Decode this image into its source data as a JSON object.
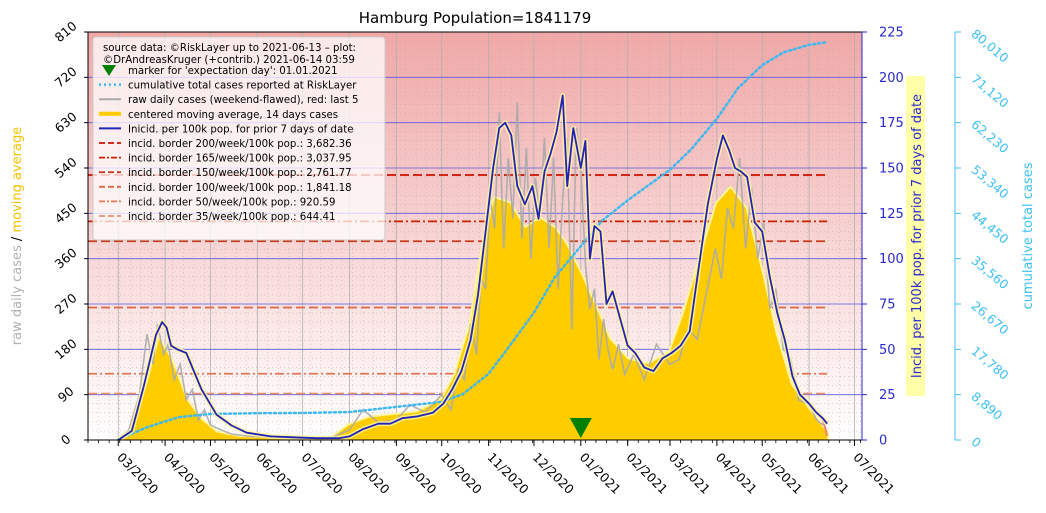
{
  "chart_data": {
    "type": "area",
    "title": "Hamburg Population=1841179",
    "xlabel": "",
    "ylabel_left": {
      "part1": "raw daily cases",
      "sep": "/",
      "part2": "moving average"
    },
    "ylabel_right1": "Incid. per 100k pop. for prior 7 days of date",
    "ylabel_right2": "cumulative total cases",
    "colors": {
      "raw": "#aaaaaa",
      "raw_last5": "#f08080",
      "moving_avg_fill": "#ffcc00",
      "moving_avg_edge": "#fff59d",
      "incidence": "#2323b8",
      "cumulative": "#3db8f0",
      "marker": "#008000",
      "right1_axis": "#2a2acd",
      "right2_axis": "#3cc0f0",
      "left_label_raw": "#b0b0b0",
      "left_label_ma": "#f2c200",
      "bg_top": "#f0a8a8",
      "bg_bottom": "#ffffff"
    },
    "ylim_left": [
      0,
      810
    ],
    "yticks_left": [
      "0",
      "90",
      "180",
      "270",
      "360",
      "450",
      "540",
      "630",
      "720",
      "810"
    ],
    "ylim_right1": [
      0,
      225
    ],
    "yticks_right1": [
      "0",
      "25",
      "50",
      "75",
      "100",
      "125",
      "150",
      "175",
      "200",
      "225"
    ],
    "ylim_right2": [
      0,
      80010
    ],
    "yticks_right2": [
      "0",
      "8,890",
      "17,780",
      "26,670",
      "35,560",
      "44,450",
      "53,340",
      "62,230",
      "71,120",
      "80,010"
    ],
    "x_months": [
      "03/2020",
      "04/2020",
      "05/2020",
      "06/2020",
      "07/2020",
      "08/2020",
      "09/2020",
      "10/2020",
      "11/2020",
      "12/2020",
      "01/2021",
      "02/2021",
      "03/2021",
      "04/2021",
      "05/2021",
      "06/2021",
      "07/2021"
    ],
    "legend": {
      "source": [
        "source data: ©RiskLayer up to 2021-06-13 – plot:",
        "©DrAndreasKruger (+contrib.) 2021-06-14 03:59"
      ],
      "items": [
        "marker for 'expectation day': 01.01.2021",
        "cumulative total cases reported at RiskLayer",
        "raw daily cases (weekend-flawed), red: last 5",
        "centered moving average, 14 days cases",
        "Inicid. per 100k pop. for prior 7 days of date",
        "incid. border 200/week/100k pop.: 3,682.36",
        "incid. border 165/week/100k pop.: 3,037.95",
        "incid. border 150/week/100k pop.: 2,761.77",
        "incid. border 100/week/100k pop.: 1,841.18",
        "incid. border   50/week/100k pop.: 920.59",
        "incid. border   35/week/100k pop.: 644.41"
      ]
    },
    "incidence_borders": [
      {
        "level": 200,
        "cases": 3682.36,
        "color": "#cc1100",
        "style": "dash"
      },
      {
        "level": 165,
        "cases": 3037.95,
        "color": "#cc2200",
        "style": "dashdot"
      },
      {
        "level": 150,
        "cases": 2761.77,
        "color": "#c83a1a",
        "style": "dash"
      },
      {
        "level": 100,
        "cases": 1841.18,
        "color": "#dd6644",
        "style": "dash"
      },
      {
        "level": 50,
        "cases": 920.59,
        "color": "#e07755",
        "style": "dashdot"
      },
      {
        "level": 35,
        "cases": 644.41,
        "color": "#e89070",
        "style": "dash"
      }
    ],
    "expectation_marker": {
      "date": "2021-01-01",
      "value": 0
    },
    "moving_average": {
      "dates": [
        "2020-03-01",
        "2020-03-10",
        "2020-03-20",
        "2020-03-28",
        "2020-04-05",
        "2020-04-15",
        "2020-04-25",
        "2020-05-05",
        "2020-05-20",
        "2020-06-10",
        "2020-07-01",
        "2020-07-20",
        "2020-08-01",
        "2020-08-15",
        "2020-09-01",
        "2020-09-15",
        "2020-10-01",
        "2020-10-10",
        "2020-10-20",
        "2020-10-28",
        "2020-11-05",
        "2020-11-15",
        "2020-11-25",
        "2020-12-05",
        "2020-12-15",
        "2020-12-22",
        "2021-01-01",
        "2021-01-10",
        "2021-01-20",
        "2021-02-01",
        "2021-02-15",
        "2021-03-01",
        "2021-03-10",
        "2021-03-20",
        "2021-04-01",
        "2021-04-10",
        "2021-04-20",
        "2021-05-01",
        "2021-05-10",
        "2021-05-20",
        "2021-06-01",
        "2021-06-10",
        "2021-06-13"
      ],
      "values": [
        0,
        20,
        110,
        200,
        160,
        80,
        40,
        15,
        6,
        4,
        3,
        4,
        30,
        45,
        50,
        55,
        80,
        130,
        230,
        380,
        480,
        470,
        420,
        440,
        420,
        390,
        330,
        270,
        200,
        160,
        150,
        175,
        250,
        350,
        470,
        500,
        460,
        330,
        210,
        110,
        60,
        25,
        15
      ]
    },
    "raw_daily": {
      "dates": [
        "2020-03-01",
        "2020-03-08",
        "2020-03-15",
        "2020-03-20",
        "2020-03-24",
        "2020-03-27",
        "2020-03-31",
        "2020-04-03",
        "2020-04-07",
        "2020-04-11",
        "2020-04-15",
        "2020-04-19",
        "2020-04-23",
        "2020-04-27",
        "2020-05-01",
        "2020-05-08",
        "2020-05-15",
        "2020-05-25",
        "2020-06-10",
        "2020-07-01",
        "2020-07-20",
        "2020-08-01",
        "2020-08-10",
        "2020-08-20",
        "2020-09-01",
        "2020-09-10",
        "2020-09-20",
        "2020-10-01",
        "2020-10-07",
        "2020-10-12",
        "2020-10-16",
        "2020-10-20",
        "2020-10-24",
        "2020-10-27",
        "2020-10-30",
        "2020-11-02",
        "2020-11-05",
        "2020-11-08",
        "2020-11-11",
        "2020-11-14",
        "2020-11-17",
        "2020-11-20",
        "2020-11-23",
        "2020-11-26",
        "2020-11-29",
        "2020-12-02",
        "2020-12-05",
        "2020-12-08",
        "2020-12-11",
        "2020-12-14",
        "2020-12-17",
        "2020-12-20",
        "2020-12-23",
        "2020-12-26",
        "2020-12-29",
        "2021-01-01",
        "2021-01-04",
        "2021-01-07",
        "2021-01-10",
        "2021-01-13",
        "2021-01-16",
        "2021-01-19",
        "2021-01-22",
        "2021-01-26",
        "2021-01-30",
        "2021-02-05",
        "2021-02-12",
        "2021-02-20",
        "2021-03-01",
        "2021-03-07",
        "2021-03-13",
        "2021-03-19",
        "2021-03-25",
        "2021-03-31",
        "2021-04-04",
        "2021-04-08",
        "2021-04-12",
        "2021-04-16",
        "2021-04-20",
        "2021-04-24",
        "2021-04-28",
        "2021-05-02",
        "2021-05-06",
        "2021-05-10",
        "2021-05-15",
        "2021-05-20",
        "2021-05-25",
        "2021-06-01",
        "2021-06-06",
        "2021-06-10"
      ],
      "values": [
        0,
        20,
        90,
        210,
        150,
        230,
        170,
        190,
        120,
        150,
        80,
        100,
        40,
        60,
        30,
        20,
        12,
        8,
        5,
        3,
        5,
        20,
        60,
        35,
        40,
        70,
        55,
        90,
        60,
        140,
        120,
        230,
        170,
        320,
        300,
        480,
        420,
        650,
        380,
        560,
        440,
        670,
        400,
        580,
        360,
        520,
        440,
        600,
        380,
        560,
        300,
        480,
        600,
        220,
        620,
        540,
        350,
        260,
        300,
        160,
        240,
        180,
        140,
        190,
        130,
        170,
        120,
        190,
        150,
        160,
        220,
        200,
        290,
        380,
        320,
        460,
        420,
        560,
        380,
        500,
        360,
        430,
        260,
        300,
        180,
        160,
        80,
        70,
        40,
        30
      ]
    },
    "raw_last5": {
      "dates": [
        "2021-06-09",
        "2021-06-10",
        "2021-06-11",
        "2021-06-12",
        "2021-06-13"
      ],
      "values": [
        45,
        38,
        30,
        20,
        8
      ]
    },
    "incidence_per100k": {
      "dates": [
        "2020-03-01",
        "2020-03-10",
        "2020-03-18",
        "2020-03-26",
        "2020-03-30",
        "2020-04-02",
        "2020-04-05",
        "2020-04-09",
        "2020-04-15",
        "2020-04-25",
        "2020-05-05",
        "2020-05-15",
        "2020-05-25",
        "2020-06-10",
        "2020-06-25",
        "2020-07-10",
        "2020-07-25",
        "2020-08-01",
        "2020-08-10",
        "2020-08-20",
        "2020-08-28",
        "2020-09-05",
        "2020-09-15",
        "2020-09-25",
        "2020-10-02",
        "2020-10-08",
        "2020-10-14",
        "2020-10-20",
        "2020-10-25",
        "2020-10-30",
        "2020-11-04",
        "2020-11-08",
        "2020-11-12",
        "2020-11-16",
        "2020-11-20",
        "2020-11-25",
        "2020-11-30",
        "2020-12-04",
        "2020-12-08",
        "2020-12-12",
        "2020-12-16",
        "2020-12-20",
        "2020-12-23",
        "2020-12-27",
        "2021-01-01",
        "2021-01-04",
        "2021-01-07",
        "2021-01-10",
        "2021-01-14",
        "2021-01-18",
        "2021-01-22",
        "2021-01-26",
        "2021-02-01",
        "2021-02-06",
        "2021-02-12",
        "2021-02-18",
        "2021-02-24",
        "2021-03-02",
        "2021-03-08",
        "2021-03-14",
        "2021-03-20",
        "2021-03-26",
        "2021-04-01",
        "2021-04-05",
        "2021-04-09",
        "2021-04-13",
        "2021-04-17",
        "2021-04-21",
        "2021-04-26",
        "2021-05-01",
        "2021-05-06",
        "2021-05-11",
        "2021-05-16",
        "2021-05-21",
        "2021-05-26",
        "2021-06-01",
        "2021-06-06",
        "2021-06-10",
        "2021-06-13"
      ],
      "values": [
        0,
        5,
        30,
        58,
        65,
        62,
        52,
        50,
        48,
        28,
        14,
        8,
        4,
        2,
        1.5,
        1,
        1,
        2,
        6,
        9,
        9,
        12,
        13,
        15,
        20,
        28,
        38,
        55,
        80,
        115,
        150,
        172,
        175,
        168,
        140,
        130,
        140,
        122,
        148,
        158,
        170,
        190,
        140,
        172,
        150,
        165,
        100,
        118,
        115,
        75,
        82,
        70,
        52,
        48,
        40,
        38,
        45,
        48,
        52,
        60,
        95,
        130,
        155,
        168,
        160,
        150,
        148,
        145,
        120,
        115,
        90,
        70,
        55,
        35,
        25,
        20,
        15,
        12,
        9
      ]
    },
    "cumulative": {
      "dates": [
        "2020-03-01",
        "2020-03-20",
        "2020-04-10",
        "2020-05-01",
        "2020-06-01",
        "2020-07-01",
        "2020-08-01",
        "2020-09-01",
        "2020-10-01",
        "2020-10-15",
        "2020-11-01",
        "2020-11-15",
        "2020-12-01",
        "2020-12-15",
        "2021-01-01",
        "2021-01-15",
        "2021-02-01",
        "2021-02-15",
        "2021-03-01",
        "2021-03-15",
        "2021-04-01",
        "2021-04-15",
        "2021-05-01",
        "2021-05-15",
        "2021-06-01",
        "2021-06-13"
      ],
      "values": [
        100,
        2500,
        4500,
        5100,
        5250,
        5300,
        5500,
        6500,
        7500,
        9000,
        13000,
        18500,
        25000,
        32000,
        38000,
        43000,
        47000,
        50000,
        53000,
        57000,
        63000,
        69000,
        73500,
        76000,
        77500,
        78000
      ]
    }
  }
}
